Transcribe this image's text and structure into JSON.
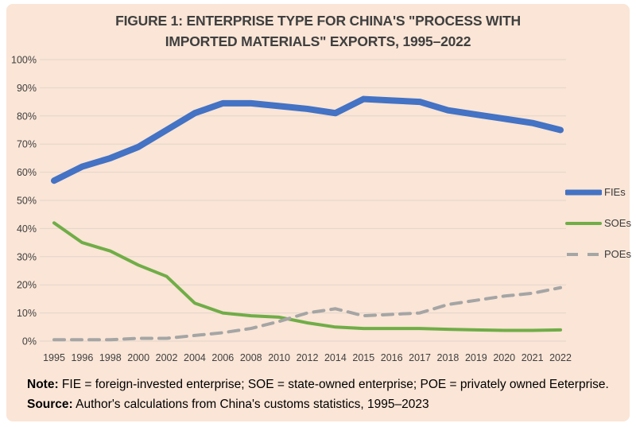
{
  "header": {
    "title_lines": [
      "FIGURE 1: ENTERPRISE TYPE FOR CHINA'S \"PROCESS WITH",
      "IMPORTED MATERIALS\" EXPORTS, 1995–2022"
    ]
  },
  "chart_data": {
    "type": "line",
    "title": "FIGURE 1: ENTERPRISE TYPE FOR CHINA'S \"PROCESS WITH IMPORTED MATERIALS\" EXPORTS, 1995–2022",
    "categories": [
      "1995",
      "1996",
      "1998",
      "2000",
      "2002",
      "2004",
      "2006",
      "2008",
      "2010",
      "2012",
      "2014",
      "2015",
      "2016",
      "2017",
      "2018",
      "2019",
      "2020",
      "2021",
      "2022"
    ],
    "series": [
      {
        "name": "FIEs",
        "color": "#4472C4",
        "stroke_width": 8,
        "dash": "",
        "values": [
          57,
          62,
          65,
          69,
          75,
          81,
          84.5,
          84.5,
          83.5,
          82.5,
          81,
          86,
          85.5,
          85,
          82,
          80.5,
          79,
          77.5,
          75
        ]
      },
      {
        "name": "SOEs",
        "color": "#70AD47",
        "stroke_width": 4,
        "dash": "",
        "values": [
          42,
          35,
          32,
          27,
          23,
          13.5,
          10,
          9,
          8.5,
          6.5,
          5,
          4.5,
          4.5,
          4.5,
          4.2,
          4,
          3.8,
          3.8,
          4
        ]
      },
      {
        "name": "POEs",
        "color": "#A5A5A5",
        "stroke_width": 4,
        "dash": "13 9",
        "values": [
          0.5,
          0.5,
          0.5,
          1,
          1,
          2,
          3,
          4.5,
          7,
          10,
          11.5,
          9,
          9.5,
          10,
          13,
          14.5,
          16,
          17,
          19
        ]
      }
    ],
    "y_ticks": [
      "0%",
      "10%",
      "20%",
      "30%",
      "40%",
      "50%",
      "60%",
      "70%",
      "80%",
      "90%",
      "100%"
    ],
    "ylim": [
      0,
      100
    ],
    "xlabel": "",
    "ylabel": "",
    "grid": true,
    "legend_position": "right",
    "background_color": "#fae5d6",
    "axis_label_color": "#404040",
    "gridline_color": "#e3d5cb"
  },
  "note": {
    "segments": [
      {
        "text": "Note:",
        "bold": true
      },
      {
        "text": " FIE = foreign-invested enterprise; SOE = state-owned enterprise; POE = privately owned Eeterprise. ",
        "bold": false
      },
      {
        "text": "Source:",
        "bold": true
      },
      {
        "text": " Author's calculations from China's customs statistics, 1995–2023",
        "bold": false
      }
    ]
  }
}
